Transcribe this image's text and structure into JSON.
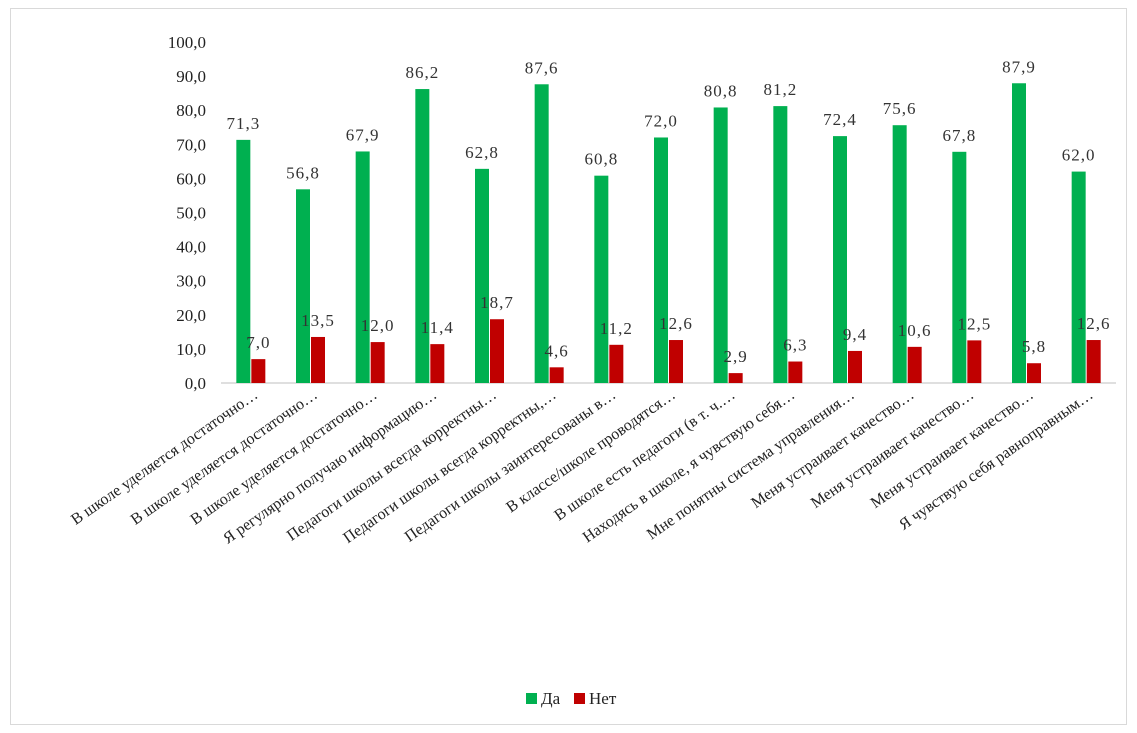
{
  "chart_data": {
    "type": "bar",
    "categories": [
      "В школе уделяется достаточно…",
      "В школе уделяется достаточно…",
      "В школе уделяется достаточно…",
      "Я регулярно получаю информацию…",
      "Педагоги школы всегда корректны…",
      "Педагоги школы всегда корректны,…",
      "Педагоги школы заинтересованы в…",
      "В классе/школе проводятся…",
      "В школе есть педагоги (в т. ч.…",
      "Находясь в школе, я чувствую себя…",
      "Мне понятны система управления…",
      "Меня устраивает качество…",
      "Меня устраивает качество…",
      "Меня устраивает качество…",
      "Я чувствую себя равноправным…"
    ],
    "series": [
      {
        "name": "Да",
        "color": "#00b050",
        "values": [
          71.3,
          56.8,
          67.9,
          86.2,
          62.8,
          87.6,
          60.8,
          72.0,
          80.8,
          81.2,
          72.4,
          75.6,
          67.8,
          87.9,
          62.0
        ],
        "labels": [
          "71,3",
          "56,8",
          "67,9",
          "86,2",
          "62,8",
          "87,6",
          "60,8",
          "72,0",
          "80,8",
          "81,2",
          "72,4",
          "75,6",
          "67,8",
          "87,9",
          "62,0"
        ]
      },
      {
        "name": "Нет",
        "color": "#c00000",
        "values": [
          7.0,
          13.5,
          12.0,
          11.4,
          18.7,
          4.6,
          11.2,
          12.6,
          2.9,
          6.3,
          9.4,
          10.6,
          12.5,
          5.8,
          12.6
        ],
        "labels": [
          "7,0",
          "13,5",
          "12,0",
          "11,4",
          "18,7",
          "4,6",
          "11,2",
          "12,6",
          "2,9",
          "6,3",
          "9,4",
          "10,6",
          "12,5",
          "5,8",
          "12,6"
        ]
      }
    ],
    "yticks": [
      "0,0",
      "10,0",
      "20,0",
      "30,0",
      "40,0",
      "50,0",
      "60,0",
      "70,0",
      "80,0",
      "90,0",
      "100,0"
    ],
    "ylim": [
      0,
      100
    ],
    "title": "",
    "xlabel": "",
    "ylabel": "",
    "grid": false,
    "legend_position": "bottom"
  }
}
